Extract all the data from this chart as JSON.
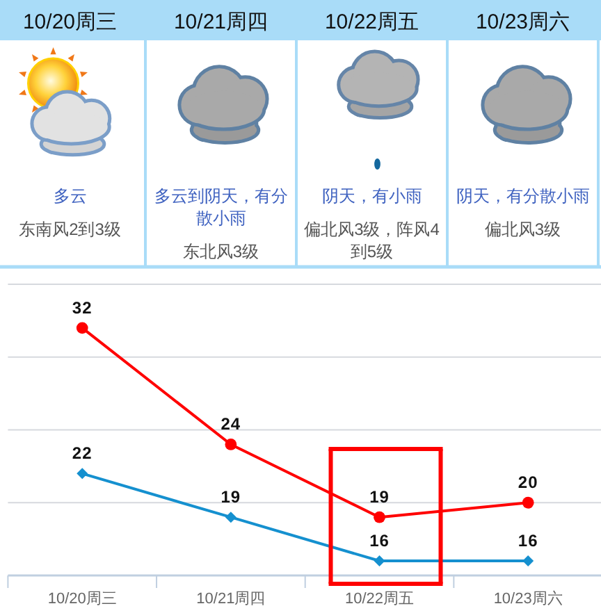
{
  "chart_data": [
    {
      "type": "other",
      "categories": [
        "10/20周三",
        "10/21周四",
        "10/22周五",
        "10/23周六"
      ],
      "annotations": [
        "多云",
        "东南风2到3级",
        "多云到阴天，有分散小雨",
        "东北风3级",
        "阴天，有小雨",
        "偏北风3级，阵风4到5级",
        "阴天，有分散小雨",
        "偏北风3级"
      ]
    },
    {
      "type": "line",
      "categories": [
        "10/20周三",
        "10/21周四",
        "10/22周五",
        "10/23周六"
      ],
      "series": [
        {
          "color": "#ff0000",
          "marker": "circle",
          "values": [
            32,
            24,
            19,
            20
          ]
        },
        {
          "color": "#1590cf",
          "marker": "diamond",
          "values": [
            22,
            19,
            16,
            16
          ]
        }
      ],
      "ylim": [
        15,
        35
      ],
      "yticks": [
        {
          "value": 20,
          "label": null
        },
        {
          "value": 25,
          "label": null
        },
        {
          "value": 30,
          "label": null
        },
        {
          "value": 35,
          "label": null
        }
      ],
      "grid": "y",
      "tick_labels": "x",
      "data_labels": true
    }
  ]
}
